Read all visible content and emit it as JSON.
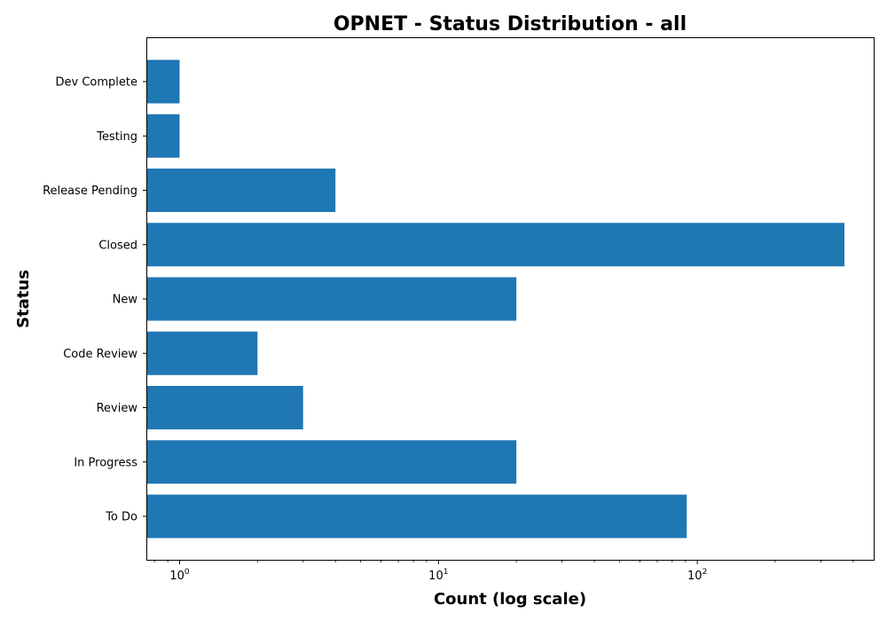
{
  "chart_data": {
    "type": "bar",
    "orientation": "horizontal",
    "title": "OPNET - Status Distribution - all",
    "xlabel": "Count (log scale)",
    "ylabel": "Status",
    "x_scale": "log",
    "xlim": [
      0.75,
      480
    ],
    "x_major_ticks": [
      {
        "value": 1,
        "base": "10",
        "exp": "0"
      },
      {
        "value": 10,
        "base": "10",
        "exp": "1"
      },
      {
        "value": 100,
        "base": "10",
        "exp": "2"
      }
    ],
    "grid": false,
    "color": "#1f77b4",
    "categories": [
      "Dev Complete",
      "Testing",
      "Release Pending",
      "Closed",
      "New",
      "Code Review",
      "Review",
      "In Progress",
      "To Do"
    ],
    "values": [
      1,
      1,
      4,
      370,
      20,
      2,
      3,
      20,
      91
    ]
  }
}
